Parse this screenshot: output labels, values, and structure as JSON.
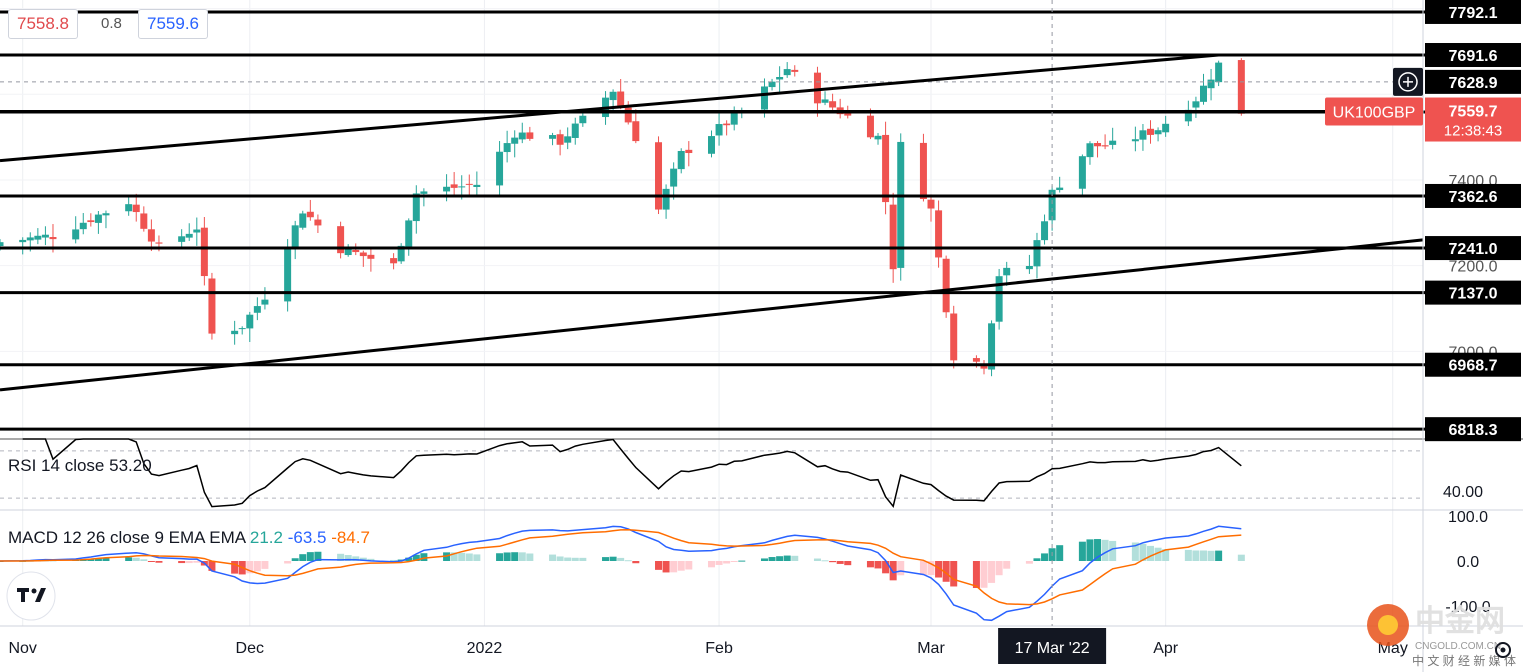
{
  "quote": {
    "bid": "7558.8",
    "spread": "0.8",
    "ask": "7559.6"
  },
  "symbol": "UK100GBP",
  "current": {
    "price": "7559.7",
    "countdown": "12:38:43"
  },
  "extra_price_labels": [
    {
      "value": 7400,
      "text": "7400.0"
    },
    {
      "value": 7200,
      "text": "7200.0"
    },
    {
      "value": 7000,
      "text": "7000.0"
    }
  ],
  "crosshair_label": "7628.9",
  "crosshair_date_label": "17 Mar '22",
  "rsi": {
    "label": "RSI 14 close",
    "value": "53.20",
    "axis_label": "40.00",
    "upper": 70,
    "lower": 30,
    "line_color": "#000000"
  },
  "macd": {
    "label": "MACD 12 26 close 9 EMA EMA",
    "hist_value": "21.2",
    "macd_value": "-63.5",
    "signal_value": "-84.7",
    "axis_labels": [
      "100.0",
      "0.0",
      "-100.0"
    ],
    "macd_color": "#2962ff",
    "signal_color": "#ff6d00",
    "hist_color": "#26a69a"
  },
  "watermark": {
    "brand": "中金网",
    "site": "CNGOLD.COM.CN",
    "tagline": "中 文 财 经 新 媒 体"
  },
  "colors": {
    "up": "#26a69a",
    "down": "#ef5350",
    "accent": "#e0494c",
    "blue": "#2962ff"
  },
  "chart_data": {
    "type": "candlestick",
    "symbol": "UK100GBP",
    "y_range": [
      6800,
      7820
    ],
    "x_axis_labels": [
      "Nov",
      "Dec",
      "2022",
      "Feb",
      "Mar",
      "Apr",
      "May"
    ],
    "x_label_positions": [
      {
        "date": "2021-11-01",
        "label": "Nov"
      },
      {
        "date": "2021-12-01",
        "label": "Dec"
      },
      {
        "date": "2022-01-01",
        "label": "2022"
      },
      {
        "date": "2022-02-01",
        "label": "Feb"
      },
      {
        "date": "2022-03-01",
        "label": "Mar"
      },
      {
        "date": "2022-04-01",
        "label": "Apr"
      },
      {
        "date": "2022-05-01",
        "label": "May"
      }
    ],
    "date_range": [
      "2021-10-29",
      "2022-05-05"
    ],
    "horizontal_levels": [
      7792.1,
      7691.6,
      7628.9,
      7559.7,
      7558.7,
      7362.6,
      7241.0,
      7137.0,
      6968.7,
      6818.3
    ],
    "trendlines": [
      {
        "start": [
          "2021-10-29",
          7445
        ],
        "end": [
          "2022-04-08",
          7691.6
        ]
      },
      {
        "start": [
          "2021-10-29",
          6910
        ],
        "end": [
          "2022-05-05",
          7260
        ]
      }
    ],
    "ohlc_anchor_closes": [
      [
        "2021-10-29",
        7255
      ],
      [
        "2021-11-05",
        7270
      ],
      [
        "2021-11-10",
        7310
      ],
      [
        "2021-11-15",
        7350
      ],
      [
        "2021-11-19",
        7240
      ],
      [
        "2021-11-24",
        7290
      ],
      [
        "2021-11-26",
        7040
      ],
      [
        "2021-11-30",
        7060
      ],
      [
        "2021-12-03",
        7130
      ],
      [
        "2021-12-08",
        7330
      ],
      [
        "2021-12-13",
        7240
      ],
      [
        "2021-12-20",
        7200
      ],
      [
        "2021-12-23",
        7370
      ],
      [
        "2021-12-31",
        7390
      ],
      [
        "2022-01-05",
        7510
      ],
      [
        "2022-01-11",
        7490
      ],
      [
        "2022-01-14",
        7540
      ],
      [
        "2022-01-18",
        7610
      ],
      [
        "2022-01-21",
        7500
      ],
      [
        "2022-01-24",
        7330
      ],
      [
        "2022-01-27",
        7460
      ],
      [
        "2022-02-01",
        7520
      ],
      [
        "2022-02-04",
        7560
      ],
      [
        "2022-02-10",
        7660
      ],
      [
        "2022-02-14",
        7590
      ],
      [
        "2022-02-17",
        7560
      ],
      [
        "2022-02-22",
        7500
      ],
      [
        "2022-02-24",
        7200
      ],
      [
        "2022-02-25",
        7480
      ],
      [
        "2022-03-01",
        7330
      ],
      [
        "2022-03-04",
        6990
      ],
      [
        "2022-03-08",
        6970
      ],
      [
        "2022-03-10",
        7180
      ],
      [
        "2022-03-14",
        7200
      ],
      [
        "2022-03-17",
        7370
      ],
      [
        "2022-03-22",
        7480
      ],
      [
        "2022-03-25",
        7480
      ],
      [
        "2022-03-31",
        7520
      ],
      [
        "2022-04-05",
        7590
      ],
      [
        "2022-04-08",
        7670
      ],
      [
        "2022-04-11",
        7559.7
      ]
    ],
    "indicators": {
      "rsi": {
        "period": 14,
        "last": 53.2,
        "guides": [
          70,
          30
        ]
      },
      "macd": {
        "fast": 12,
        "slow": 26,
        "signal": 9,
        "histogram": 21.2,
        "macd": -63.5,
        "signal_line": -84.7
      }
    }
  }
}
